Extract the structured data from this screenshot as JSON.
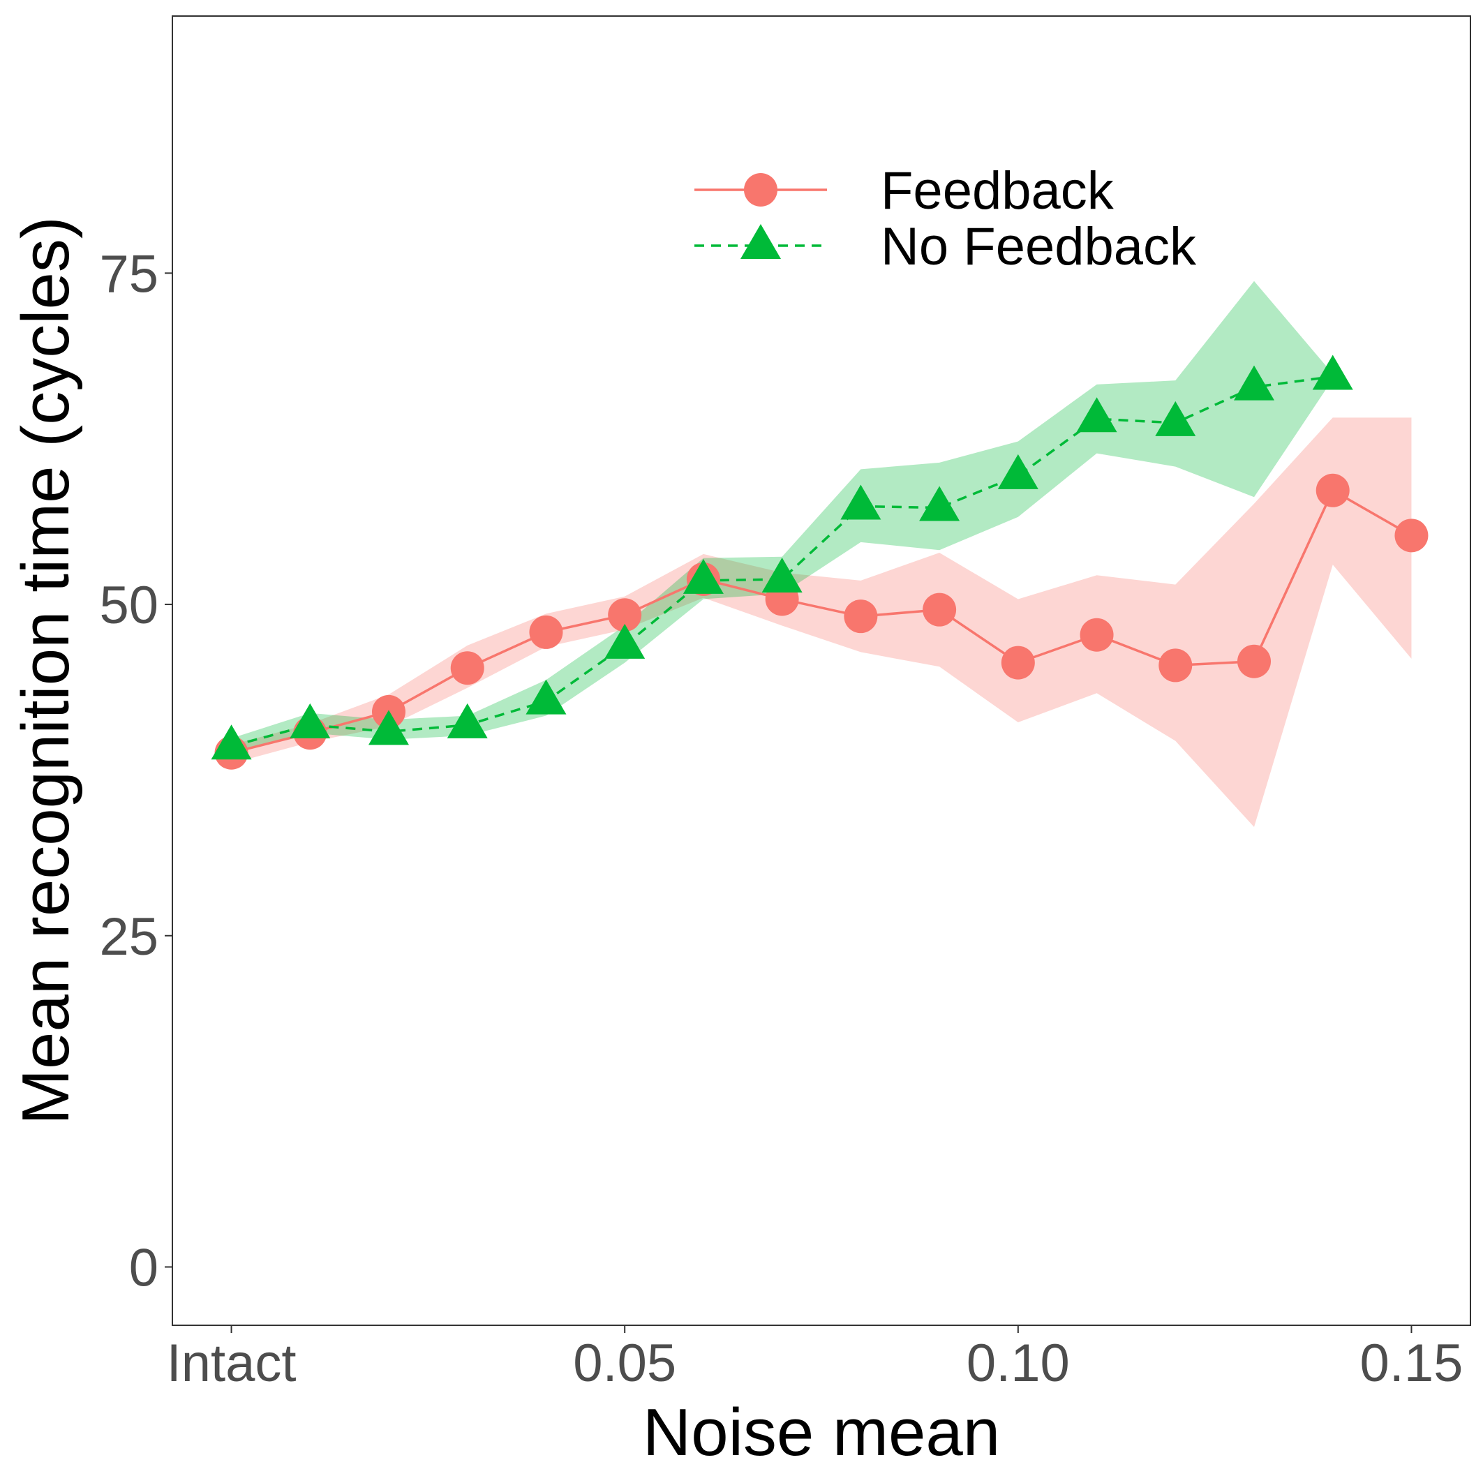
{
  "chart_data": {
    "type": "line",
    "xlabel": "Noise mean",
    "ylabel": "Mean recognition time (cycles)",
    "x_ticks": [
      {
        "value": 0.0,
        "label": "Intact"
      },
      {
        "value": 0.05,
        "label": "0.05"
      },
      {
        "value": 0.1,
        "label": "0.10"
      },
      {
        "value": 0.15,
        "label": "0.15"
      }
    ],
    "y_ticks": [
      {
        "value": 0,
        "label": "0"
      },
      {
        "value": 25,
        "label": "25"
      },
      {
        "value": 50,
        "label": "50"
      },
      {
        "value": 75,
        "label": "75"
      }
    ],
    "xlim": [
      -0.0075,
      0.1575
    ],
    "ylim": [
      -4.4,
      94.4
    ],
    "grid": false,
    "legend_position": "top-right (inside)",
    "series": [
      {
        "name": "Feedback",
        "color": "#F8766D",
        "ribbon_color": "#F8766D",
        "line_style": "solid",
        "marker": "circle",
        "x": [
          0.0,
          0.01,
          0.02,
          0.03,
          0.04,
          0.05,
          0.06,
          0.07,
          0.08,
          0.09,
          0.1,
          0.11,
          0.12,
          0.13,
          0.14,
          0.15
        ],
        "y": [
          38.8,
          40.3,
          41.9,
          45.2,
          47.9,
          49.2,
          51.9,
          50.4,
          49.1,
          49.6,
          45.6,
          47.7,
          45.4,
          45.7,
          58.6,
          55.2
        ],
        "lower": [
          38.0,
          39.6,
          40.8,
          43.7,
          46.8,
          48.1,
          50.5,
          48.4,
          46.4,
          45.3,
          41.1,
          43.3,
          39.7,
          33.2,
          53.0,
          45.9
        ],
        "upper": [
          39.4,
          41.0,
          43.2,
          46.9,
          49.3,
          50.6,
          53.8,
          52.4,
          51.8,
          53.9,
          50.4,
          52.2,
          51.5,
          57.6,
          64.1,
          64.1
        ]
      },
      {
        "name": "No Feedback",
        "color": "#00BA38",
        "ribbon_color": "#00BA38",
        "line_style": "dashed",
        "marker": "triangle",
        "x": [
          0.0,
          0.01,
          0.02,
          0.03,
          0.04,
          0.05,
          0.06,
          0.07,
          0.08,
          0.09,
          0.1,
          0.11,
          0.12,
          0.13,
          0.14
        ],
        "y": [
          39.3,
          40.9,
          40.4,
          40.9,
          42.7,
          46.9,
          51.8,
          51.9,
          57.4,
          57.3,
          59.7,
          64.0,
          63.7,
          66.4,
          67.2
        ],
        "lower": [
          38.8,
          40.3,
          39.8,
          40.1,
          41.6,
          45.6,
          50.4,
          50.8,
          54.7,
          54.1,
          56.6,
          61.4,
          60.4,
          58.1,
          67.0
        ],
        "upper": [
          39.9,
          41.8,
          41.3,
          41.6,
          44.3,
          48.4,
          53.5,
          53.6,
          60.2,
          60.7,
          62.3,
          66.6,
          66.9,
          74.4,
          67.4
        ]
      }
    ]
  }
}
